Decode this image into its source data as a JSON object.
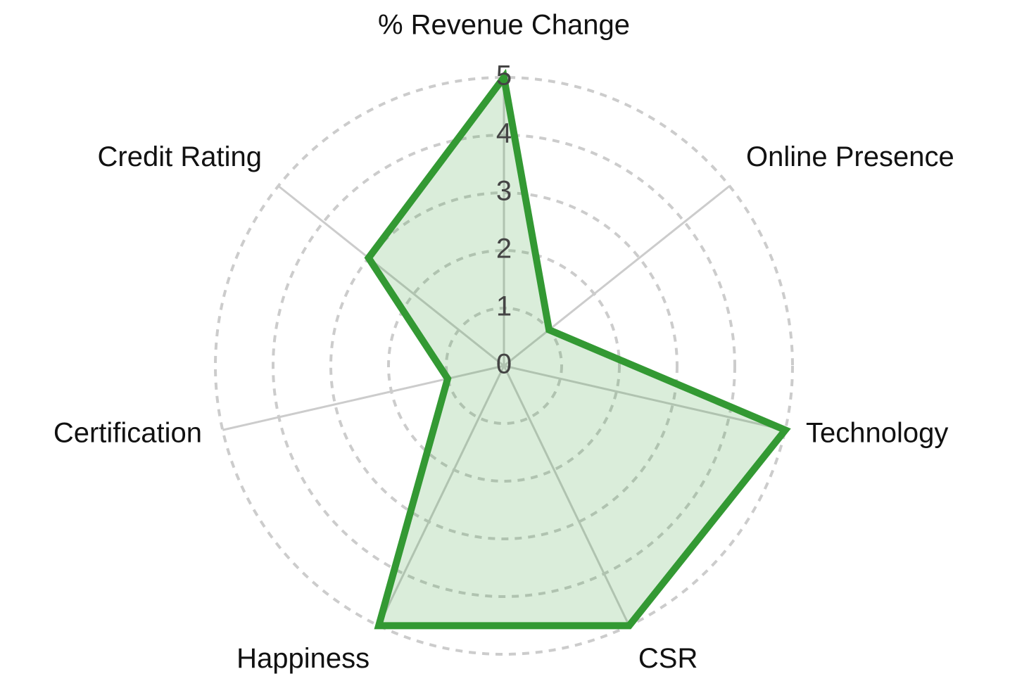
{
  "chart_data": {
    "type": "radar",
    "categories": [
      "% Revenue Change",
      "Online Presence",
      "Technology",
      "CSR",
      "Happiness",
      "Certification",
      "Credit Rating"
    ],
    "series": [
      {
        "name": null,
        "color": "#339933",
        "values": [
          5,
          1,
          5,
          5,
          5,
          1,
          3
        ]
      }
    ],
    "ylim": [
      0,
      5
    ],
    "yticks": [
      0,
      1,
      2,
      3,
      4,
      5
    ],
    "grid": true
  }
}
